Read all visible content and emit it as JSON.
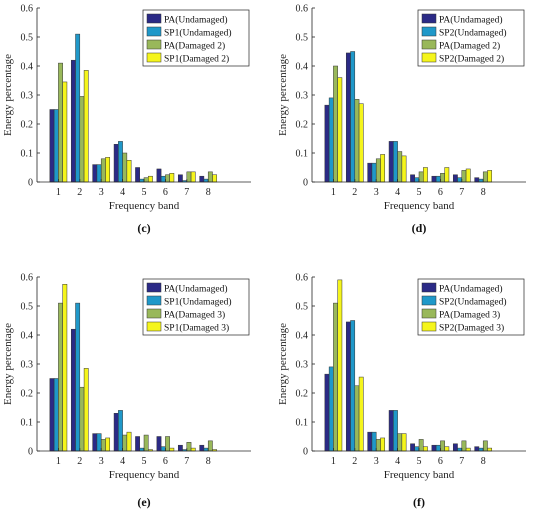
{
  "colors": {
    "pa_undamaged": "#2b2a86",
    "sp_undamaged": "#1f98c9",
    "pa_damaged": "#99b85a",
    "sp_damaged": "#f5f51c",
    "axis": "#262626",
    "bar_stroke": "#333333"
  },
  "chart_data": [
    {
      "panel_label": "(c)",
      "type": "bar",
      "xlabel": "Frequency band",
      "ylabel": "Energy percentage",
      "ylim": [
        0,
        0.6
      ],
      "yticks": [
        "0",
        "0.1",
        "0.2",
        "0.3",
        "0.4",
        "0.5",
        "0.6"
      ],
      "categories": [
        "1",
        "2",
        "3",
        "4",
        "5",
        "6",
        "7",
        "8"
      ],
      "legend_position": "top-right",
      "series": [
        {
          "name": "PA(Undamaged)",
          "values": [
            0.25,
            0.42,
            0.06,
            0.13,
            0.05,
            0.045,
            0.025,
            0.02
          ]
        },
        {
          "name": "SP1(Undamaged)",
          "values": [
            0.25,
            0.51,
            0.06,
            0.14,
            0.01,
            0.02,
            0.005,
            0.01
          ]
        },
        {
          "name": "PA(Damaged 2)",
          "values": [
            0.41,
            0.295,
            0.08,
            0.1,
            0.015,
            0.025,
            0.035,
            0.035
          ]
        },
        {
          "name": "SP1(Damaged 2)",
          "values": [
            0.345,
            0.385,
            0.085,
            0.075,
            0.02,
            0.03,
            0.035,
            0.025
          ]
        }
      ]
    },
    {
      "panel_label": "(d)",
      "type": "bar",
      "xlabel": "Frequency band",
      "ylabel": "Energy percentage",
      "ylim": [
        0,
        0.6
      ],
      "yticks": [
        "0",
        "0.1",
        "0.2",
        "0.3",
        "0.4",
        "0.5",
        "0.6"
      ],
      "categories": [
        "1",
        "2",
        "3",
        "4",
        "5",
        "6",
        "7",
        "8"
      ],
      "legend_position": "top-right",
      "series": [
        {
          "name": "PA(Undamaged)",
          "values": [
            0.265,
            0.445,
            0.065,
            0.14,
            0.025,
            0.02,
            0.025,
            0.015
          ]
        },
        {
          "name": "SP2(Undamaged)",
          "values": [
            0.29,
            0.45,
            0.065,
            0.14,
            0.015,
            0.02,
            0.015,
            0.01
          ]
        },
        {
          "name": "PA(Damaged 2)",
          "values": [
            0.4,
            0.285,
            0.08,
            0.105,
            0.035,
            0.03,
            0.04,
            0.035
          ]
        },
        {
          "name": "SP2(Damaged 2)",
          "values": [
            0.36,
            0.27,
            0.095,
            0.09,
            0.05,
            0.05,
            0.045,
            0.04
          ]
        }
      ]
    },
    {
      "panel_label": "(e)",
      "type": "bar",
      "xlabel": "Frequency band",
      "ylabel": "Energy percentage",
      "ylim": [
        0,
        0.6
      ],
      "yticks": [
        "0",
        "0.1",
        "0.2",
        "0.3",
        "0.4",
        "0.5",
        "0.6"
      ],
      "categories": [
        "1",
        "2",
        "3",
        "4",
        "5",
        "6",
        "7",
        "8"
      ],
      "legend_position": "top-right",
      "series": [
        {
          "name": "PA(Undamaged)",
          "values": [
            0.25,
            0.42,
            0.06,
            0.13,
            0.05,
            0.05,
            0.02,
            0.02
          ]
        },
        {
          "name": "SP1(Undamaged)",
          "values": [
            0.25,
            0.51,
            0.06,
            0.14,
            0.01,
            0.015,
            0.005,
            0.01
          ]
        },
        {
          "name": "PA(Damaged 3)",
          "values": [
            0.51,
            0.22,
            0.04,
            0.055,
            0.055,
            0.05,
            0.03,
            0.035
          ]
        },
        {
          "name": "SP1(Damaged 3)",
          "values": [
            0.575,
            0.285,
            0.045,
            0.065,
            0.005,
            0.01,
            0.01,
            0.005
          ]
        }
      ]
    },
    {
      "panel_label": "(f)",
      "type": "bar",
      "xlabel": "Frequency band",
      "ylabel": "Energy percentage",
      "ylim": [
        0,
        0.6
      ],
      "yticks": [
        "0",
        "0.1",
        "0.2",
        "0.3",
        "0.4",
        "0.5",
        "0.6"
      ],
      "categories": [
        "1",
        "2",
        "3",
        "4",
        "5",
        "6",
        "7",
        "8"
      ],
      "legend_position": "top-right",
      "series": [
        {
          "name": "PA(Undamaged)",
          "values": [
            0.265,
            0.445,
            0.065,
            0.14,
            0.025,
            0.02,
            0.025,
            0.015
          ]
        },
        {
          "name": "SP2(Undamaged)",
          "values": [
            0.29,
            0.45,
            0.065,
            0.14,
            0.015,
            0.02,
            0.01,
            0.01
          ]
        },
        {
          "name": "PA(Damaged 3)",
          "values": [
            0.51,
            0.225,
            0.04,
            0.06,
            0.04,
            0.035,
            0.035,
            0.035
          ]
        },
        {
          "name": "SP2(Damaged 3)",
          "values": [
            0.59,
            0.255,
            0.045,
            0.06,
            0.015,
            0.015,
            0.01,
            0.01
          ]
        }
      ]
    }
  ]
}
